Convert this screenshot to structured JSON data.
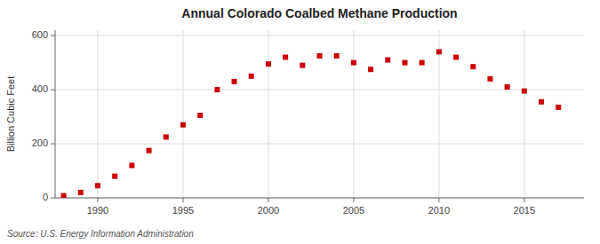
{
  "chart_data": {
    "type": "scatter",
    "title": "Annual Colorado Coalbed Methane Production",
    "ylabel": "Billion Cubic Feet",
    "annotations": [
      "Source: U.S. Energy Information Administration"
    ],
    "x": [
      1988,
      1989,
      1990,
      1991,
      1992,
      1993,
      1994,
      1995,
      1996,
      1997,
      1998,
      1999,
      2000,
      2001,
      2002,
      2003,
      2004,
      2005,
      2006,
      2007,
      2008,
      2009,
      2010,
      2011,
      2012,
      2013,
      2014,
      2015,
      2016,
      2017
    ],
    "values": [
      8,
      20,
      45,
      80,
      120,
      175,
      225,
      270,
      305,
      400,
      430,
      450,
      495,
      520,
      490,
      525,
      525,
      500,
      475,
      510,
      500,
      500,
      540,
      520,
      485,
      440,
      410,
      395,
      355,
      335
    ],
    "color": "#cc0000",
    "marker": "square",
    "xlim": [
      1987.5,
      2018.5
    ],
    "ylim": [
      0,
      620
    ],
    "xticks": [
      1990,
      1995,
      2000,
      2005,
      2010,
      2015
    ],
    "yticks": [
      0,
      200,
      400,
      600
    ],
    "grid": true
  }
}
